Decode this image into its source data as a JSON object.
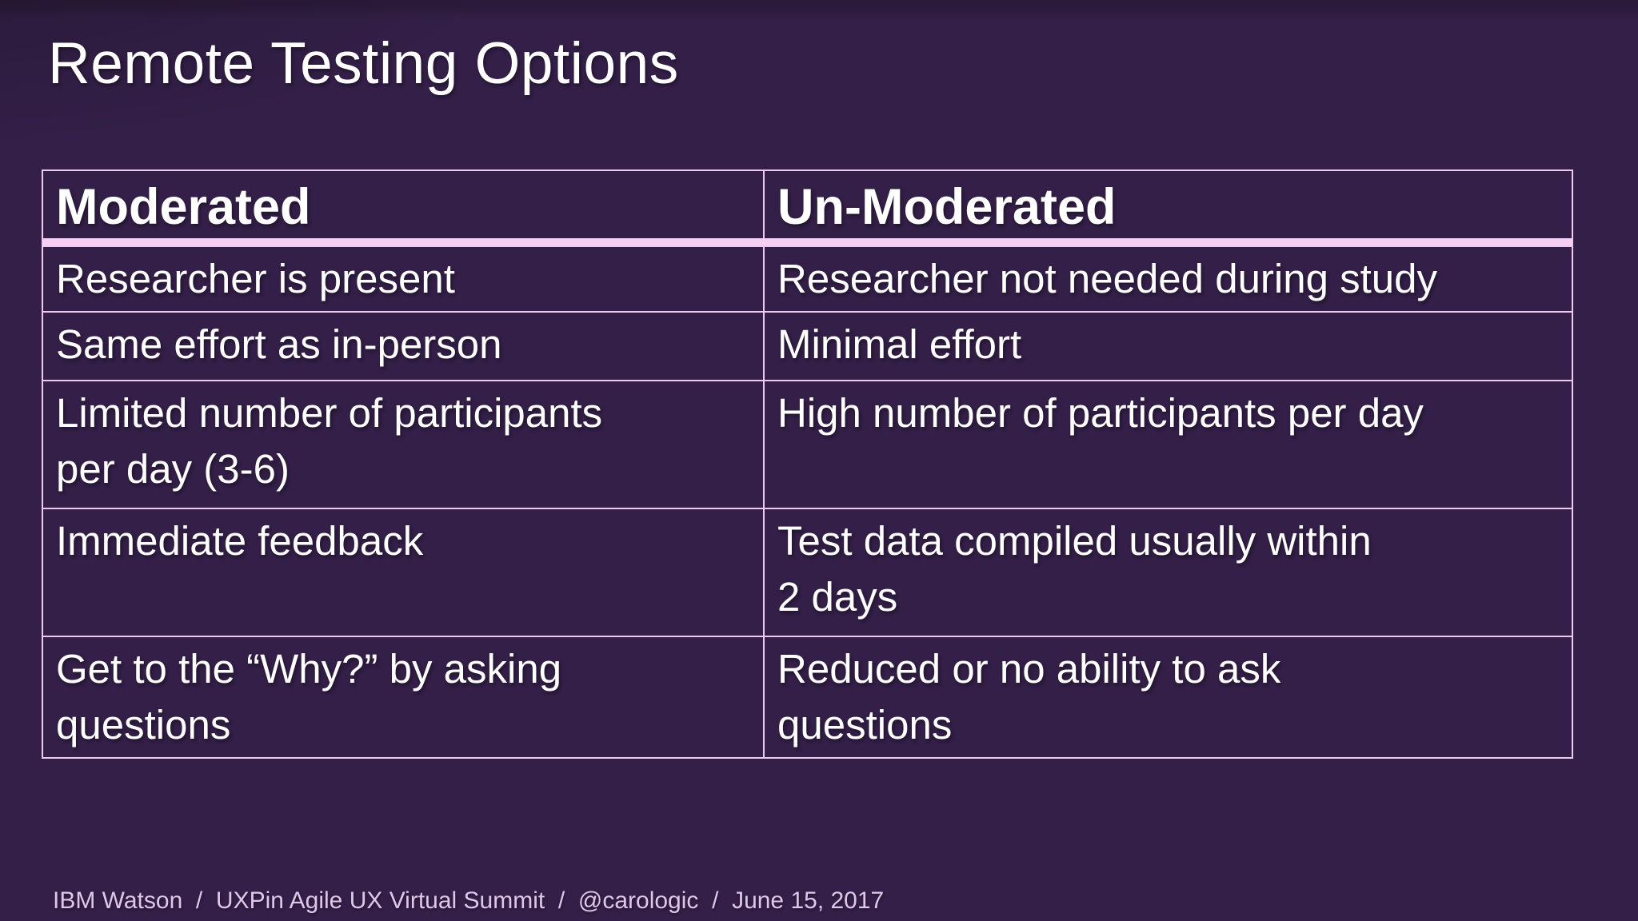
{
  "slide": {
    "title": "Remote Testing Options",
    "table": {
      "columns": [
        {
          "header": "Moderated"
        },
        {
          "header": "Un-Moderated"
        }
      ],
      "rows": [
        {
          "moderated": "Researcher is present",
          "unmoderated": "Researcher not needed during study"
        },
        {
          "moderated": "Same effort as in-person",
          "unmoderated": "Minimal effort"
        },
        {
          "moderated": "Limited number of participants\nper day (3-6)",
          "unmoderated": "High number of participants per day"
        },
        {
          "moderated": "Immediate feedback",
          "unmoderated": "Test data compiled usually within\n2 days"
        },
        {
          "moderated": "Get to the “Why?” by asking\nquestions",
          "unmoderated": "Reduced or no ability to ask\nquestions"
        }
      ]
    },
    "footer": {
      "text": "IBM Watson  /  UXPin Agile UX Virtual Summit  /  @carologic  /  June 15, 2017"
    }
  },
  "colors": {
    "slide_background": "#331f47",
    "slide_background_edge": "#2b1a3a",
    "table_border": "#eecbee",
    "header_underline": "#f7cff5",
    "body_text": "#ffffff",
    "footer_text": "#e0c6e8"
  }
}
